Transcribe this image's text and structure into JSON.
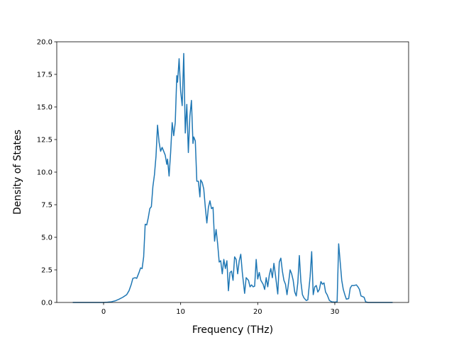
{
  "chart_data": {
    "type": "line",
    "xlabel": "Frequency (THz)",
    "ylabel": "Density of States",
    "x": [
      -4,
      0,
      0.5,
      1,
      1.5,
      2,
      2.5,
      3,
      3.3,
      3.6,
      3.8,
      4.1,
      4.3,
      4.6,
      4.8,
      5,
      5.2,
      5.4,
      5.6,
      5.8,
      6,
      6.2,
      6.4,
      6.6,
      6.8,
      7,
      7.2,
      7.4,
      7.6,
      7.8,
      8,
      8.2,
      8.3,
      8.5,
      8.7,
      8.9,
      9.1,
      9.3,
      9.5,
      9.6,
      9.8,
      10,
      10.2,
      10.4,
      10.6,
      10.8,
      11,
      11.2,
      11.4,
      11.6,
      11.7,
      11.9,
      12.1,
      12.3,
      12.5,
      12.6,
      12.8,
      13,
      13.2,
      13.4,
      13.6,
      13.8,
      14,
      14.2,
      14.4,
      14.6,
      14.8,
      15,
      15.2,
      15.4,
      15.6,
      15.8,
      16,
      16.2,
      16.4,
      16.6,
      16.8,
      17,
      17.2,
      17.4,
      17.6,
      17.8,
      18,
      18.3,
      18.5,
      18.8,
      19,
      19.2,
      19.4,
      19.6,
      19.8,
      20,
      20.2,
      20.4,
      20.7,
      20.9,
      21.1,
      21.3,
      21.5,
      21.7,
      21.9,
      22.1,
      22.3,
      22.6,
      22.8,
      23,
      23.2,
      23.4,
      23.6,
      23.8,
      24,
      24.2,
      24.4,
      24.6,
      24.8,
      25,
      25.2,
      25.4,
      25.6,
      25.8,
      26,
      26.3,
      26.5,
      26.8,
      27,
      27.2,
      27.4,
      27.6,
      27.8,
      28,
      28.2,
      28.4,
      28.6,
      28.8,
      29,
      29.3,
      29.6,
      30,
      30.3,
      30.5,
      30.7,
      30.9,
      31.1,
      31.3,
      31.5,
      31.8,
      32,
      32.2,
      32.5,
      32.8,
      33,
      33.2,
      33.4,
      33.6,
      33.8,
      34,
      34.3,
      37.5
    ],
    "series": [
      {
        "color": "#1f77b4",
        "values": [
          0,
          0,
          0.02,
          0.05,
          0.12,
          0.25,
          0.4,
          0.6,
          0.9,
          1.4,
          1.85,
          1.9,
          1.85,
          2.3,
          2.65,
          2.6,
          3.5,
          6,
          5.95,
          6.5,
          7.2,
          7.35,
          8.9,
          9.8,
          11.2,
          13.6,
          12.3,
          11.6,
          11.9,
          11.6,
          11.3,
          10.6,
          11,
          9.7,
          11.5,
          13.8,
          12.8,
          13.8,
          17.4,
          16.9,
          18.7,
          16.2,
          15.1,
          19.1,
          13,
          15.2,
          11.5,
          14.3,
          15.5,
          12.2,
          12.7,
          12.4,
          9.3,
          9.3,
          8.1,
          9.4,
          9.2,
          8.7,
          7.3,
          6.1,
          7.3,
          7.8,
          7.2,
          7.3,
          4.7,
          5.6,
          4.5,
          3.1,
          3.2,
          2.2,
          3.3,
          2.6,
          3.2,
          0.9,
          2.3,
          2.4,
          1.7,
          3.5,
          3.3,
          2.2,
          3.2,
          3.7,
          2.3,
          0.7,
          1.9,
          1.7,
          1.2,
          1.35,
          1.2,
          1.25,
          3.3,
          1.8,
          2.3,
          1.7,
          1.4,
          1.0,
          1.9,
          1.2,
          2.1,
          2.6,
          1.9,
          3.0,
          2.1,
          0.65,
          3.1,
          3.4,
          2.4,
          1.7,
          1.4,
          0.6,
          1.5,
          2.5,
          2.2,
          1.7,
          0.8,
          0.5,
          1.5,
          3.6,
          1.6,
          0.6,
          0.35,
          0.15,
          0.2,
          2.0,
          3.9,
          0.6,
          1.2,
          1.3,
          0.8,
          1.0,
          1.6,
          1.4,
          1.5,
          0.8,
          0.6,
          0.15,
          0.05,
          0.03,
          0.05,
          4.5,
          3.1,
          1.7,
          1.0,
          0.6,
          0.25,
          0.3,
          1.1,
          1.3,
          1.3,
          1.35,
          1.2,
          1.0,
          0.5,
          0.45,
          0.4,
          0.05,
          0,
          0
        ]
      }
    ],
    "xlim": [
      -6.075,
      39.575
    ],
    "xticks": [
      0,
      10,
      20,
      30
    ],
    "ylim": [
      0,
      20
    ],
    "yticks": [
      {
        "value": 0,
        "label": "0.0"
      },
      {
        "value": 2.5,
        "label": "2.5"
      },
      {
        "value": 5,
        "label": "5.0"
      },
      {
        "value": 7.5,
        "label": "7.5"
      },
      {
        "value": 10,
        "label": "10.0"
      },
      {
        "value": 12.5,
        "label": "12.5"
      },
      {
        "value": 15,
        "label": "15.0"
      },
      {
        "value": 17.5,
        "label": "17.5"
      },
      {
        "value": 20,
        "label": "20.0"
      }
    ]
  }
}
